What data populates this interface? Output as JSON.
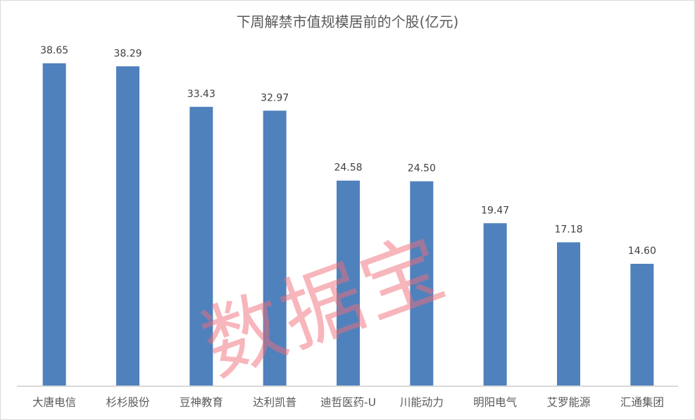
{
  "chart_data": {
    "type": "bar",
    "title": "下周解禁市值规模居前的个股(亿元)",
    "categories": [
      "大唐电信",
      "杉杉股份",
      "豆神教育",
      "达利凯普",
      "迪哲医药-U",
      "川能动力",
      "明阳电气",
      "艾罗能源",
      "汇通集团"
    ],
    "values": [
      38.65,
      38.29,
      33.43,
      32.97,
      24.58,
      24.5,
      19.47,
      17.18,
      14.6
    ],
    "value_labels": [
      "38.65",
      "38.29",
      "33.43",
      "32.97",
      "24.58",
      "24.50",
      "19.47",
      "17.18",
      "14.60"
    ],
    "ylim": [
      0,
      40
    ],
    "grid": false,
    "bar_color": "#4f81bd",
    "axis_color": "#d9d9d9"
  },
  "watermark": "数据宝"
}
